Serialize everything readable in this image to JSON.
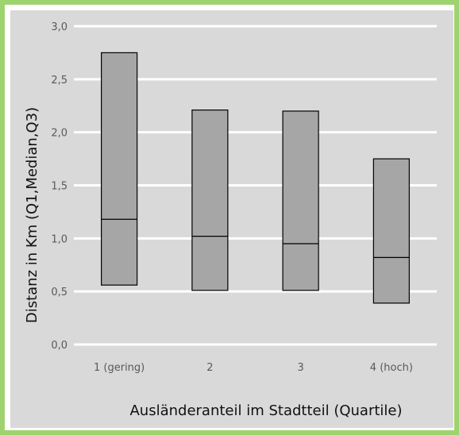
{
  "colors": {
    "outer_border": "#9fd36f",
    "plot_background": "#d9d9d9",
    "grid": "#ffffff",
    "box_fill": "#a6a6a6",
    "box_stroke": "#000000"
  },
  "chart_data": {
    "type": "bar",
    "subtype": "floating-box (Q1 to Q3 with median line)",
    "title": "",
    "xlabel": "Ausländeranteil im Stadtteil (Quartile)",
    "ylabel": "Distanz in Km (Q1,Median,Q3)",
    "ylim": [
      0,
      3
    ],
    "y_ticks": [
      "0,0",
      "0,5",
      "1,0",
      "1,5",
      "2,0",
      "2,5",
      "3,0"
    ],
    "grid": "horizontal",
    "categories": [
      "1 (gering)",
      "2",
      "3",
      "4 (hoch)"
    ],
    "series": [
      {
        "name": "Q1",
        "values": [
          0.56,
          0.51,
          0.51,
          0.39
        ]
      },
      {
        "name": "Median",
        "values": [
          1.18,
          1.02,
          0.95,
          0.82
        ]
      },
      {
        "name": "Q3",
        "values": [
          2.75,
          2.21,
          2.2,
          1.75
        ]
      }
    ]
  }
}
